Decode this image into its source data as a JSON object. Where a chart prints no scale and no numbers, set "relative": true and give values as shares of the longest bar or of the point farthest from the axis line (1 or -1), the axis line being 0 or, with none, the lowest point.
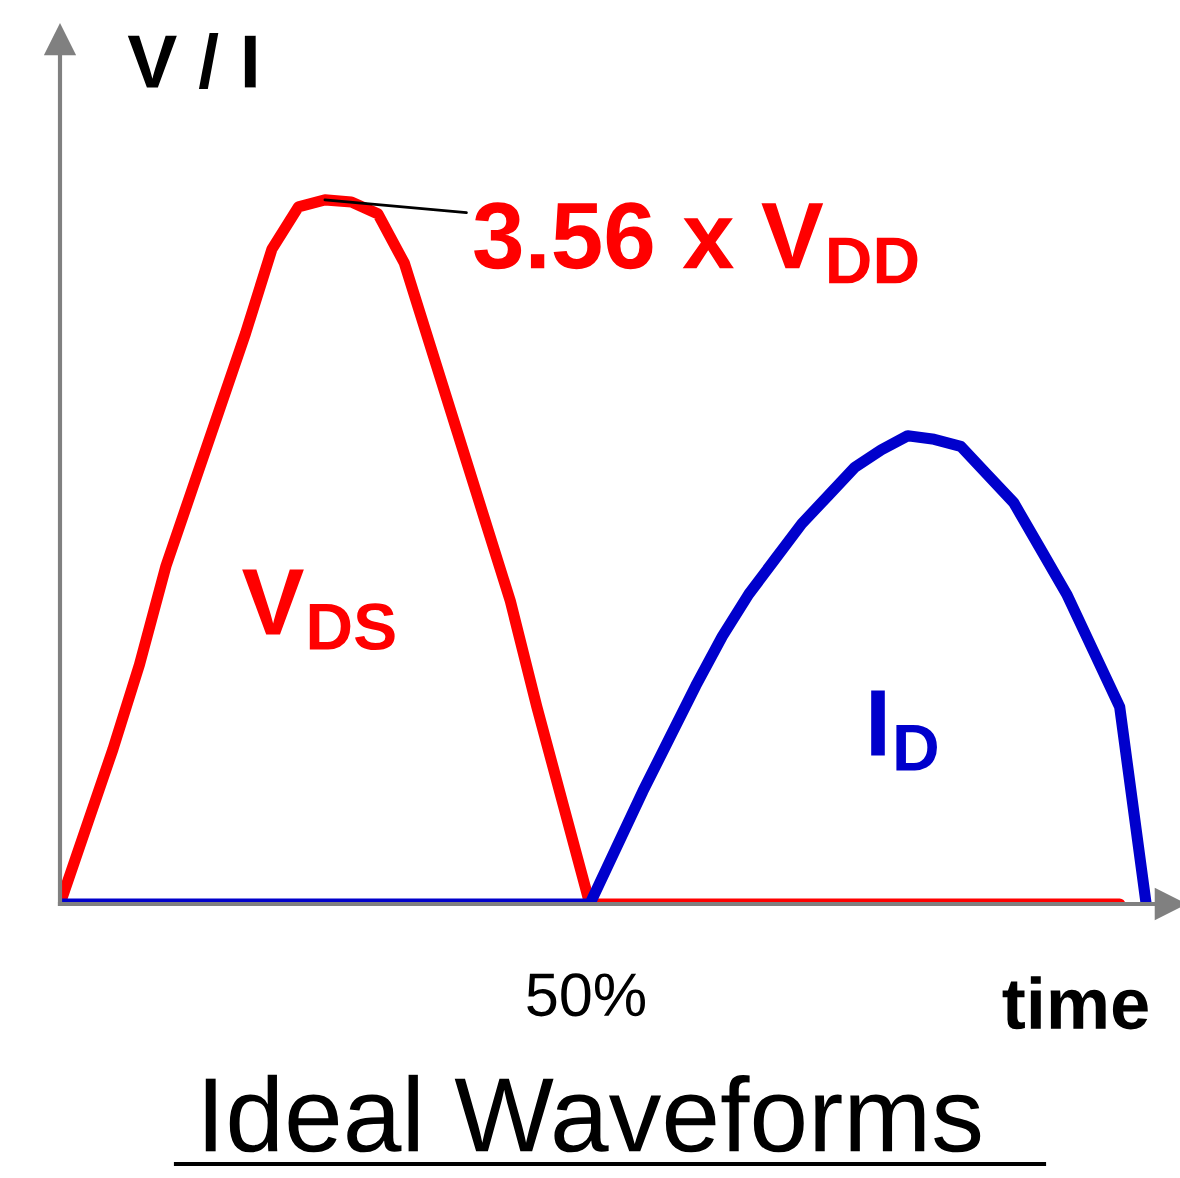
{
  "chart_data": {
    "type": "line",
    "relative": true,
    "title": "Ideal Waveforms",
    "xlabel": "time",
    "ylabel": "V / I",
    "categories": [
      null,
      null,
      null,
      null,
      null,
      null,
      null,
      null,
      null,
      null,
      null,
      null,
      null,
      null,
      null,
      null,
      null,
      null,
      null,
      null,
      null,
      null,
      null,
      null,
      null,
      null,
      null,
      null,
      null,
      null,
      null,
      null,
      null,
      null,
      null,
      null,
      null,
      null,
      null,
      null,
      null,
      null
    ],
    "series": [
      {
        "name": "V$_{DS}$",
        "color": "#ff0000",
        "values": [
          0,
          0.11,
          0.22,
          0.34,
          0.48,
          0.59,
          0.7,
          0.81,
          0.93,
          0.99,
          1,
          0.997,
          0.98,
          0.91,
          0.79,
          0.67,
          0.55,
          0.43,
          0.28,
          0.14,
          0,
          0,
          0,
          0,
          0,
          0,
          0,
          0,
          0,
          0,
          0,
          0,
          0,
          0,
          0,
          0,
          0,
          0,
          0,
          0,
          0,
          null
        ]
      },
      {
        "name": "I$_{D}$",
        "color": "#0000cc",
        "values": [
          0,
          0,
          0,
          0,
          0,
          0,
          0,
          0,
          0,
          0,
          0,
          0,
          0,
          0,
          0,
          0,
          0,
          0,
          0,
          0,
          0,
          0.08,
          0.16,
          0.235,
          0.31,
          0.38,
          0.44,
          0.49,
          0.54,
          0.58,
          0.62,
          0.645,
          0.665,
          0.66,
          0.65,
          0.61,
          0.57,
          0.505,
          0.44,
          0.36,
          0.28,
          0
        ]
      }
    ],
    "annotations": [
      "3.56 x V$_{DD}$",
      "50%"
    ],
    "grid": false,
    "legend": false,
    "marker": "none",
    "line_style": "solid"
  }
}
